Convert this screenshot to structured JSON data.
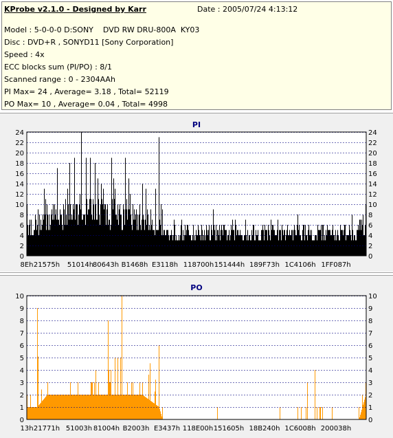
{
  "header": {
    "title": "KProbe v2.1.0 - Designed by Karr",
    "date": "Date : 2005/07/24 4:13:12",
    "lines": [
      "Model : 5-0-0-0 D:SONY    DVD RW DRU-800A  KY03",
      "Disc : DVD+R , SONYD11 [Sony Corporation]",
      "Speed : 4x",
      "ECC blocks sum (PI/PO) : 8/1",
      "Scanned range : 0 - 2304AAh",
      "PI Max= 24 , Average= 3.18 , Total= 52119",
      "PO Max= 10 , Average= 0.04 , Total= 4998"
    ]
  },
  "colors": {
    "pi": "#000000",
    "po": "#ff9900",
    "grid": "#000080",
    "plot_bg": "#ffffff",
    "panel_bg": "#f0f0f0"
  },
  "chart_data": [
    {
      "type": "bar",
      "title": "PI",
      "ylim": [
        0,
        24
      ],
      "yticks": [
        0,
        2,
        4,
        6,
        8,
        10,
        12,
        14,
        16,
        18,
        20,
        22,
        24
      ],
      "xticks": [
        "8Eh",
        "21575h",
        "51014h",
        "80643h",
        "B1468h",
        "E3118h",
        "118700h",
        "151444h",
        "189F73h",
        "1C4106h",
        "1FF087h"
      ],
      "x_range": [
        "0h",
        "2304AAh"
      ],
      "color": "#000000",
      "profile": [
        {
          "x": 0.0,
          "base": 6,
          "max": 10
        },
        {
          "x": 0.05,
          "base": 8,
          "max": 13
        },
        {
          "x": 0.09,
          "base": 9,
          "max": 17
        },
        {
          "x": 0.14,
          "base": 10,
          "max": 19
        },
        {
          "x": 0.16,
          "base": 10,
          "max": 24
        },
        {
          "x": 0.2,
          "base": 10,
          "max": 18
        },
        {
          "x": 0.25,
          "base": 9,
          "max": 19
        },
        {
          "x": 0.29,
          "base": 9,
          "max": 19
        },
        {
          "x": 0.34,
          "base": 8,
          "max": 14
        },
        {
          "x": 0.38,
          "base": 7,
          "max": 13
        },
        {
          "x": 0.39,
          "base": 7,
          "max": 23
        },
        {
          "x": 0.4,
          "base": 5,
          "max": 9
        },
        {
          "x": 0.55,
          "base": 5,
          "max": 9
        },
        {
          "x": 0.8,
          "base": 5,
          "max": 8
        },
        {
          "x": 0.96,
          "base": 5,
          "max": 8
        },
        {
          "x": 1.0,
          "base": 7,
          "max": 10
        }
      ]
    },
    {
      "type": "bar",
      "title": "PO",
      "ylim": [
        0,
        10
      ],
      "yticks": [
        0,
        1,
        2,
        3,
        4,
        5,
        6,
        7,
        8,
        9,
        10
      ],
      "xticks": [
        "13h",
        "21771h",
        "51003h",
        "81004h",
        "B2003h",
        "E3437h",
        "118E00h",
        "151605h",
        "18B240h",
        "1C6008h",
        "200038h"
      ],
      "x_range": [
        "0h",
        "2304AAh"
      ],
      "color": "#ff9900",
      "profile": [
        {
          "x": 0.0,
          "base": 1,
          "max": 2
        },
        {
          "x": 0.03,
          "base": 1,
          "max": 9
        },
        {
          "x": 0.06,
          "base": 2,
          "max": 3
        },
        {
          "x": 0.15,
          "base": 2,
          "max": 3
        },
        {
          "x": 0.24,
          "base": 2,
          "max": 8
        },
        {
          "x": 0.28,
          "base": 2,
          "max": 10
        },
        {
          "x": 0.34,
          "base": 2,
          "max": 3
        },
        {
          "x": 0.39,
          "base": 1,
          "max": 6
        },
        {
          "x": 0.4,
          "base": 0,
          "max": 1
        },
        {
          "x": 0.8,
          "base": 0,
          "max": 1
        },
        {
          "x": 0.85,
          "base": 0,
          "max": 4
        },
        {
          "x": 0.9,
          "base": 0,
          "max": 1
        },
        {
          "x": 0.98,
          "base": 0,
          "max": 1
        },
        {
          "x": 1.0,
          "base": 2,
          "max": 3
        }
      ]
    }
  ]
}
